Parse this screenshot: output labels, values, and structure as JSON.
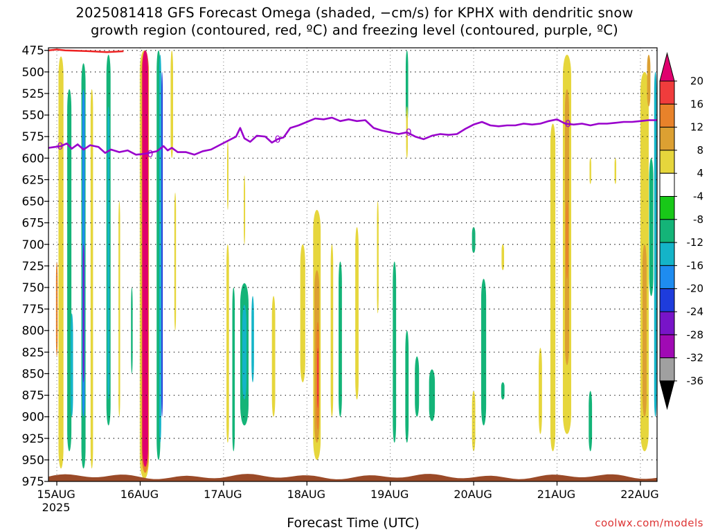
{
  "header": {
    "title_line1": "2025081418 GFS Forecast Omega (shaded, −cm/s) for KPHX with dendritic snow",
    "title_line2": "growth region (contoured, red, ºC) and freezing level (contoured, purple, ºC)"
  },
  "footer": {
    "xlabel": "Forecast Time (UTC)",
    "credit": "coolwx.com/models"
  },
  "chart_data": {
    "type": "heatmap",
    "xlabel": "Forecast Time (UTC)",
    "ylabel": "",
    "y_axis": {
      "ticks": [
        475,
        500,
        525,
        550,
        575,
        600,
        625,
        650,
        675,
        700,
        725,
        750,
        775,
        800,
        825,
        850,
        875,
        900,
        925,
        950,
        975
      ],
      "range": [
        975,
        472
      ],
      "grid": true
    },
    "x_axis": {
      "ticks": [
        {
          "label": "15AUG",
          "sub": "2025",
          "day": 15
        },
        {
          "label": "16AUG",
          "sub": "",
          "day": 16
        },
        {
          "label": "17AUG",
          "sub": "",
          "day": 17
        },
        {
          "label": "18AUG",
          "sub": "",
          "day": 18
        },
        {
          "label": "19AUG",
          "sub": "",
          "day": 19
        },
        {
          "label": "20AUG",
          "sub": "",
          "day": 20
        },
        {
          "label": "21AUG",
          "sub": "",
          "day": 21
        },
        {
          "label": "22AUG",
          "sub": "",
          "day": 22
        }
      ],
      "range": [
        14.9,
        22.2
      ],
      "grid": true
    },
    "colorbar": {
      "levels": [
        20,
        16,
        12,
        8,
        4,
        -4,
        -8,
        -12,
        -16,
        -20,
        -24,
        -28,
        -32,
        -36
      ],
      "bins": [
        {
          "color": "#e0006e"
        },
        {
          "color": "#f03c3c"
        },
        {
          "color": "#e8822a"
        },
        {
          "color": "#dca032"
        },
        {
          "color": "#e6d63c"
        },
        {
          "color": "#ffffff"
        },
        {
          "color": "#18c818"
        },
        {
          "color": "#14b478"
        },
        {
          "color": "#14b4c8"
        },
        {
          "color": "#1e8cf0"
        },
        {
          "color": "#1e3cdc"
        },
        {
          "color": "#7814c8"
        },
        {
          "color": "#a00ab4"
        },
        {
          "color": "#a0a0a0"
        },
        {
          "color": "#000000"
        }
      ]
    },
    "freezing_level": {
      "color": "#9900cc",
      "label": "0",
      "points": [
        [
          14.9,
          588
        ],
        [
          15.05,
          586
        ],
        [
          15.12,
          583
        ],
        [
          15.18,
          589
        ],
        [
          15.25,
          584
        ],
        [
          15.32,
          590
        ],
        [
          15.4,
          585
        ],
        [
          15.5,
          587
        ],
        [
          15.58,
          594
        ],
        [
          15.65,
          590
        ],
        [
          15.75,
          593
        ],
        [
          15.85,
          591
        ],
        [
          15.95,
          596
        ],
        [
          16.05,
          595
        ],
        [
          16.2,
          592
        ],
        [
          16.28,
          586
        ],
        [
          16.33,
          591
        ],
        [
          16.38,
          588
        ],
        [
          16.45,
          593
        ],
        [
          16.55,
          593
        ],
        [
          16.65,
          596
        ],
        [
          16.75,
          592
        ],
        [
          16.85,
          590
        ],
        [
          16.95,
          585
        ],
        [
          17.05,
          580
        ],
        [
          17.15,
          575
        ],
        [
          17.2,
          565
        ],
        [
          17.25,
          577
        ],
        [
          17.32,
          581
        ],
        [
          17.4,
          574
        ],
        [
          17.5,
          575
        ],
        [
          17.58,
          582
        ],
        [
          17.65,
          578
        ],
        [
          17.72,
          576
        ],
        [
          17.8,
          565
        ],
        [
          17.9,
          562
        ],
        [
          18.0,
          558
        ],
        [
          18.1,
          554
        ],
        [
          18.2,
          555
        ],
        [
          18.3,
          553
        ],
        [
          18.4,
          557
        ],
        [
          18.5,
          555
        ],
        [
          18.6,
          557
        ],
        [
          18.7,
          556
        ],
        [
          18.8,
          565
        ],
        [
          18.9,
          568
        ],
        [
          19.0,
          570
        ],
        [
          19.1,
          572
        ],
        [
          19.2,
          570
        ],
        [
          19.3,
          575
        ],
        [
          19.4,
          578
        ],
        [
          19.5,
          574
        ],
        [
          19.6,
          572
        ],
        [
          19.7,
          573
        ],
        [
          19.8,
          572
        ],
        [
          19.9,
          566
        ],
        [
          20.0,
          561
        ],
        [
          20.1,
          558
        ],
        [
          20.2,
          562
        ],
        [
          20.3,
          563
        ],
        [
          20.4,
          562
        ],
        [
          20.5,
          562
        ],
        [
          20.6,
          560
        ],
        [
          20.7,
          561
        ],
        [
          20.8,
          560
        ],
        [
          20.9,
          557
        ],
        [
          21.0,
          555
        ],
        [
          21.1,
          560
        ],
        [
          21.2,
          561
        ],
        [
          21.3,
          560
        ],
        [
          21.4,
          562
        ],
        [
          21.5,
          560
        ],
        [
          21.6,
          560
        ],
        [
          21.7,
          559
        ],
        [
          21.8,
          558
        ],
        [
          21.9,
          558
        ],
        [
          22.0,
          557
        ],
        [
          22.1,
          556
        ],
        [
          22.2,
          556
        ]
      ]
    },
    "dendritic_contour": {
      "color": "#ee2222",
      "points": [
        [
          14.9,
          475
        ],
        [
          15.0,
          474
        ],
        [
          15.1,
          475
        ],
        [
          15.4,
          476
        ],
        [
          15.6,
          477
        ],
        [
          15.8,
          476
        ]
      ]
    },
    "omega_regions": [
      {
        "x": 15.05,
        "p0": 482,
        "p1": 960,
        "w": 0.06,
        "value": 4
      },
      {
        "x": 15.0,
        "p0": 720,
        "p1": 830,
        "w": 0.02,
        "value": 12
      },
      {
        "x": 15.15,
        "p0": 520,
        "p1": 940,
        "w": 0.05,
        "value": -8
      },
      {
        "x": 15.18,
        "p0": 780,
        "p1": 900,
        "w": 0.03,
        "value": -12
      },
      {
        "x": 15.32,
        "p0": 490,
        "p1": 960,
        "w": 0.05,
        "value": -8
      },
      {
        "x": 15.32,
        "p0": 520,
        "p1": 900,
        "w": 0.03,
        "value": -16
      },
      {
        "x": 15.32,
        "p0": 700,
        "p1": 860,
        "w": 0.015,
        "value": -24
      },
      {
        "x": 15.42,
        "p0": 520,
        "p1": 960,
        "w": 0.03,
        "value": 4
      },
      {
        "x": 15.62,
        "p0": 480,
        "p1": 910,
        "w": 0.05,
        "value": -8
      },
      {
        "x": 15.62,
        "p0": 540,
        "p1": 880,
        "w": 0.025,
        "value": -12
      },
      {
        "x": 15.75,
        "p0": 650,
        "p1": 900,
        "w": 0.02,
        "value": 4
      },
      {
        "x": 15.9,
        "p0": 750,
        "p1": 850,
        "w": 0.02,
        "value": -8
      },
      {
        "x": 16.05,
        "p0": 475,
        "p1": 972,
        "w": 0.11,
        "value": 4
      },
      {
        "x": 16.06,
        "p0": 475,
        "p1": 965,
        "w": 0.085,
        "value": 12
      },
      {
        "x": 16.06,
        "p0": 475,
        "p1": 958,
        "w": 0.07,
        "value": 20
      },
      {
        "x": 16.22,
        "p0": 475,
        "p1": 950,
        "w": 0.045,
        "value": -8
      },
      {
        "x": 16.24,
        "p0": 480,
        "p1": 930,
        "w": 0.025,
        "value": -12
      },
      {
        "x": 16.26,
        "p0": 500,
        "p1": 900,
        "w": 0.012,
        "value": -20
      },
      {
        "x": 16.38,
        "p0": 475,
        "p1": 600,
        "w": 0.03,
        "value": 4
      },
      {
        "x": 16.42,
        "p0": 640,
        "p1": 800,
        "w": 0.02,
        "value": 4
      },
      {
        "x": 17.05,
        "p0": 700,
        "p1": 930,
        "w": 0.03,
        "value": 4
      },
      {
        "x": 17.12,
        "p0": 750,
        "p1": 940,
        "w": 0.03,
        "value": -8
      },
      {
        "x": 17.25,
        "p0": 745,
        "p1": 910,
        "w": 0.1,
        "value": -8
      },
      {
        "x": 17.25,
        "p0": 770,
        "p1": 880,
        "w": 0.05,
        "value": -12
      },
      {
        "x": 17.35,
        "p0": 760,
        "p1": 860,
        "w": 0.03,
        "value": -12
      },
      {
        "x": 17.05,
        "p0": 580,
        "p1": 660,
        "w": 0.015,
        "value": 4
      },
      {
        "x": 17.25,
        "p0": 620,
        "p1": 700,
        "w": 0.015,
        "value": 4
      },
      {
        "x": 17.6,
        "p0": 760,
        "p1": 900,
        "w": 0.04,
        "value": 4
      },
      {
        "x": 17.95,
        "p0": 700,
        "p1": 860,
        "w": 0.06,
        "value": 4
      },
      {
        "x": 18.12,
        "p0": 660,
        "p1": 950,
        "w": 0.09,
        "value": 4
      },
      {
        "x": 18.12,
        "p0": 730,
        "p1": 930,
        "w": 0.06,
        "value": 8
      },
      {
        "x": 18.13,
        "p0": 790,
        "p1": 915,
        "w": 0.035,
        "value": 12
      },
      {
        "x": 18.13,
        "p0": 820,
        "p1": 890,
        "w": 0.015,
        "value": 16
      },
      {
        "x": 18.3,
        "p0": 700,
        "p1": 900,
        "w": 0.03,
        "value": 4
      },
      {
        "x": 18.4,
        "p0": 720,
        "p1": 900,
        "w": 0.04,
        "value": -8
      },
      {
        "x": 18.6,
        "p0": 680,
        "p1": 880,
        "w": 0.04,
        "value": 4
      },
      {
        "x": 18.85,
        "p0": 650,
        "p1": 780,
        "w": 0.02,
        "value": 4
      },
      {
        "x": 19.05,
        "p0": 720,
        "p1": 930,
        "w": 0.04,
        "value": -8
      },
      {
        "x": 19.2,
        "p0": 800,
        "p1": 930,
        "w": 0.04,
        "value": -8
      },
      {
        "x": 19.32,
        "p0": 830,
        "p1": 900,
        "w": 0.05,
        "value": -8
      },
      {
        "x": 19.2,
        "p0": 475,
        "p1": 560,
        "w": 0.03,
        "value": -8
      },
      {
        "x": 19.2,
        "p0": 540,
        "p1": 600,
        "w": 0.02,
        "value": 4
      },
      {
        "x": 19.5,
        "p0": 845,
        "p1": 905,
        "w": 0.07,
        "value": -8
      },
      {
        "x": 20.0,
        "p0": 870,
        "p1": 940,
        "w": 0.04,
        "value": 4
      },
      {
        "x": 20.12,
        "p0": 740,
        "p1": 910,
        "w": 0.06,
        "value": -8
      },
      {
        "x": 20.0,
        "p0": 680,
        "p1": 710,
        "w": 0.04,
        "value": -8
      },
      {
        "x": 20.35,
        "p0": 700,
        "p1": 730,
        "w": 0.03,
        "value": 4
      },
      {
        "x": 20.35,
        "p0": 860,
        "p1": 880,
        "w": 0.04,
        "value": -8
      },
      {
        "x": 20.8,
        "p0": 820,
        "p1": 920,
        "w": 0.04,
        "value": 4
      },
      {
        "x": 20.95,
        "p0": 560,
        "p1": 940,
        "w": 0.06,
        "value": 4
      },
      {
        "x": 21.12,
        "p0": 480,
        "p1": 920,
        "w": 0.1,
        "value": 4
      },
      {
        "x": 21.12,
        "p0": 520,
        "p1": 840,
        "w": 0.05,
        "value": 8
      },
      {
        "x": 21.12,
        "p0": 650,
        "p1": 740,
        "w": 0.025,
        "value": 12
      },
      {
        "x": 21.4,
        "p0": 870,
        "p1": 940,
        "w": 0.04,
        "value": -8
      },
      {
        "x": 21.4,
        "p0": 600,
        "p1": 630,
        "w": 0.02,
        "value": 4
      },
      {
        "x": 21.7,
        "p0": 600,
        "p1": 630,
        "w": 0.02,
        "value": 4
      },
      {
        "x": 22.05,
        "p0": 500,
        "p1": 940,
        "w": 0.1,
        "value": 4
      },
      {
        "x": 22.05,
        "p0": 700,
        "p1": 900,
        "w": 0.05,
        "value": 8
      },
      {
        "x": 22.1,
        "p0": 480,
        "p1": 540,
        "w": 0.04,
        "value": 8
      },
      {
        "x": 22.13,
        "p0": 600,
        "p1": 760,
        "w": 0.05,
        "value": -8
      },
      {
        "x": 22.18,
        "p0": 500,
        "p1": 900,
        "w": 0.03,
        "value": -12
      }
    ]
  }
}
